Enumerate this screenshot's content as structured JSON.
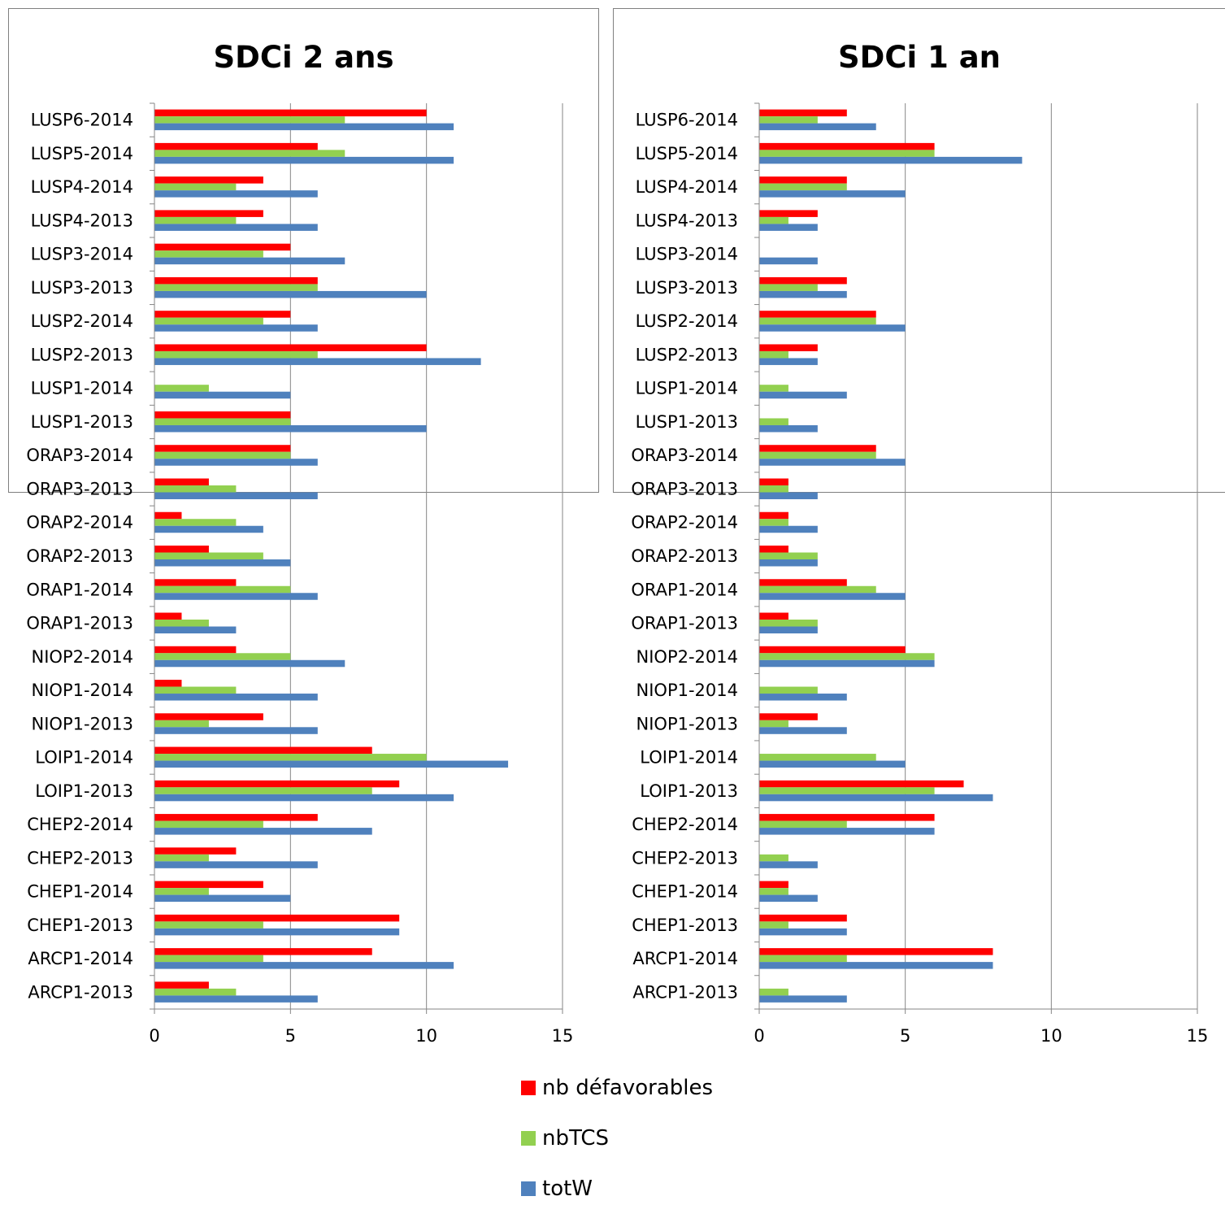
{
  "legend": [
    {
      "label": "nb défavorables",
      "color": "#ff0000"
    },
    {
      "label": "nbTCS",
      "color": "#92d050"
    },
    {
      "label": "totW",
      "color": "#4f81bd"
    }
  ],
  "chart_data": [
    {
      "type": "bar",
      "orientation": "horizontal",
      "title": "SDCi 2 ans",
      "xlim": [
        0,
        15
      ],
      "xticks": [
        0,
        5,
        10,
        15
      ],
      "grid": true,
      "legend_position": "bottom",
      "categories": [
        "LUSP6-2014",
        "LUSP5-2014",
        "LUSP4-2014",
        "LUSP4-2013",
        "LUSP3-2014",
        "LUSP3-2013",
        "LUSP2-2014",
        "LUSP2-2013",
        "LUSP1-2014",
        "LUSP1-2013",
        "ORAP3-2014",
        "ORAP3-2013",
        "ORAP2-2014",
        "ORAP2-2013",
        "ORAP1-2014",
        "ORAP1-2013",
        "NIOP2-2014",
        "NIOP1-2014",
        "NIOP1-2013",
        "LOIP1-2014",
        "LOIP1-2013",
        "CHEP2-2014",
        "CHEP2-2013",
        "CHEP1-2014",
        "CHEP1-2013",
        "ARCP1-2014",
        "ARCP1-2013"
      ],
      "series": [
        {
          "name": "nb défavorables",
          "color": "#ff0000",
          "values": [
            10,
            6,
            4,
            4,
            5,
            6,
            5,
            10,
            0,
            5,
            5,
            2,
            1,
            2,
            3,
            1,
            3,
            1,
            4,
            8,
            9,
            6,
            3,
            4,
            9,
            8,
            2
          ]
        },
        {
          "name": "nbTCS",
          "color": "#92d050",
          "values": [
            7,
            7,
            3,
            3,
            4,
            6,
            4,
            6,
            2,
            5,
            5,
            3,
            3,
            4,
            5,
            2,
            5,
            3,
            2,
            10,
            8,
            4,
            2,
            2,
            4,
            4,
            3
          ]
        },
        {
          "name": "totW",
          "color": "#4f81bd",
          "values": [
            11,
            11,
            6,
            6,
            7,
            10,
            6,
            12,
            5,
            10,
            6,
            6,
            4,
            5,
            6,
            3,
            7,
            6,
            6,
            13,
            11,
            8,
            6,
            5,
            9,
            11,
            6
          ]
        }
      ]
    },
    {
      "type": "bar",
      "orientation": "horizontal",
      "title": "SDCi 1 an",
      "xlim": [
        0,
        15
      ],
      "xticks": [
        0,
        5,
        10,
        15
      ],
      "grid": true,
      "legend_position": "bottom",
      "categories": [
        "LUSP6-2014",
        "LUSP5-2014",
        "LUSP4-2014",
        "LUSP4-2013",
        "LUSP3-2014",
        "LUSP3-2013",
        "LUSP2-2014",
        "LUSP2-2013",
        "LUSP1-2014",
        "LUSP1-2013",
        "ORAP3-2014",
        "ORAP3-2013",
        "ORAP2-2014",
        "ORAP2-2013",
        "ORAP1-2014",
        "ORAP1-2013",
        "NIOP2-2014",
        "NIOP1-2014",
        "NIOP1-2013",
        "LOIP1-2014",
        "LOIP1-2013",
        "CHEP2-2014",
        "CHEP2-2013",
        "CHEP1-2014",
        "CHEP1-2013",
        "ARCP1-2014",
        "ARCP1-2013"
      ],
      "series": [
        {
          "name": "nb défavorables",
          "color": "#ff0000",
          "values": [
            3,
            6,
            3,
            2,
            0,
            3,
            4,
            2,
            0,
            0,
            4,
            1,
            1,
            1,
            3,
            1,
            5,
            0,
            2,
            0,
            7,
            6,
            0,
            1,
            3,
            8,
            0
          ]
        },
        {
          "name": "nbTCS",
          "color": "#92d050",
          "values": [
            2,
            6,
            3,
            1,
            0,
            2,
            4,
            1,
            1,
            1,
            4,
            1,
            1,
            2,
            4,
            2,
            6,
            2,
            1,
            4,
            6,
            3,
            1,
            1,
            1,
            3,
            1
          ]
        },
        {
          "name": "totW",
          "color": "#4f81bd",
          "values": [
            4,
            9,
            5,
            2,
            2,
            3,
            5,
            2,
            3,
            2,
            5,
            2,
            2,
            2,
            5,
            2,
            6,
            3,
            3,
            5,
            8,
            6,
            2,
            2,
            3,
            8,
            3
          ]
        }
      ]
    }
  ]
}
